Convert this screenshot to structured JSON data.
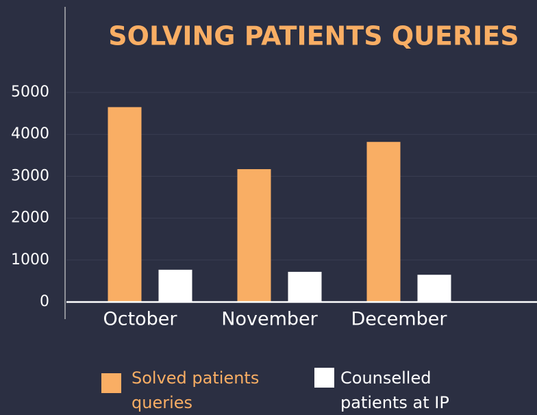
{
  "chart_data": {
    "type": "bar",
    "title": "SOLVING PATIENTS QUERIES",
    "categories": [
      "October",
      "November",
      "December"
    ],
    "series": [
      {
        "name": "Solved patients queries",
        "color": "#f9ae64",
        "values": [
          4650,
          3170,
          3820
        ]
      },
      {
        "name": "Counselled patients at IP",
        "color": "#ffffff",
        "values": [
          770,
          720,
          650
        ]
      }
    ],
    "ylim": [
      0,
      5000
    ],
    "yticks": [
      0,
      1000,
      2000,
      3000,
      4000,
      5000
    ],
    "grid": true,
    "legend": "bottom"
  }
}
